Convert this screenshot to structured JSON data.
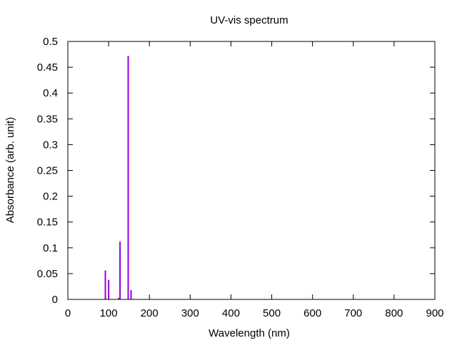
{
  "chart_data": {
    "type": "bar",
    "title": "UV-vis spectrum",
    "xlabel": "Wavelength (nm)",
    "ylabel": "Absorbance (arb. unit)",
    "xlim": [
      0,
      900
    ],
    "ylim": [
      0,
      0.5
    ],
    "x_ticks": [
      "0",
      "100",
      "200",
      "300",
      "400",
      "500",
      "600",
      "700",
      "800",
      "900"
    ],
    "y_ticks": [
      "0",
      "0.05",
      "0.1",
      "0.15",
      "0.2",
      "0.25",
      "0.3",
      "0.35",
      "0.4",
      "0.45",
      "0.5"
    ],
    "grid": false,
    "legend": "none",
    "bar_color": "#9400d3",
    "series": [
      {
        "x": [
          92,
          100,
          125,
          128,
          148,
          155
        ],
        "values": [
          0.056,
          0.038,
          0.003,
          0.112,
          0.472,
          0.018
        ]
      }
    ]
  }
}
